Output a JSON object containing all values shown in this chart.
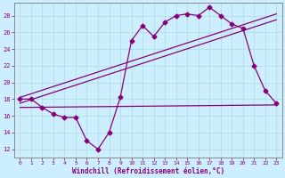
{
  "xlabel": "Windchill (Refroidissement éolien,°C)",
  "bg_color": "#cceeff",
  "line_color": "#880077",
  "grid_color": "#aadddd",
  "spine_color": "#888888",
  "xlim": [
    -0.5,
    23.5
  ],
  "ylim": [
    11.0,
    29.5
  ],
  "yticks": [
    12,
    14,
    16,
    18,
    20,
    22,
    24,
    26,
    28
  ],
  "xticks": [
    0,
    1,
    2,
    3,
    4,
    5,
    6,
    7,
    8,
    9,
    10,
    11,
    12,
    13,
    14,
    15,
    16,
    17,
    18,
    19,
    20,
    21,
    22,
    23
  ],
  "series1_x": [
    0,
    1,
    2,
    3,
    4,
    5,
    6,
    7,
    8,
    9,
    10,
    11,
    12,
    13,
    14,
    15,
    16,
    17,
    18,
    19,
    20,
    21,
    22,
    23
  ],
  "series1_y": [
    18.0,
    18.0,
    17.0,
    16.2,
    15.8,
    15.8,
    13.0,
    12.0,
    14.0,
    18.2,
    25.0,
    26.8,
    25.5,
    27.2,
    28.0,
    28.2,
    28.0,
    29.0,
    28.0,
    27.0,
    26.5,
    22.0,
    19.0,
    17.5
  ],
  "series2_x": [
    0,
    23
  ],
  "series2_y": [
    17.0,
    17.3
  ],
  "series3_x": [
    0,
    23
  ],
  "series3_y": [
    17.5,
    27.5
  ],
  "series4_x": [
    0,
    23
  ],
  "series4_y": [
    18.2,
    28.2
  ]
}
